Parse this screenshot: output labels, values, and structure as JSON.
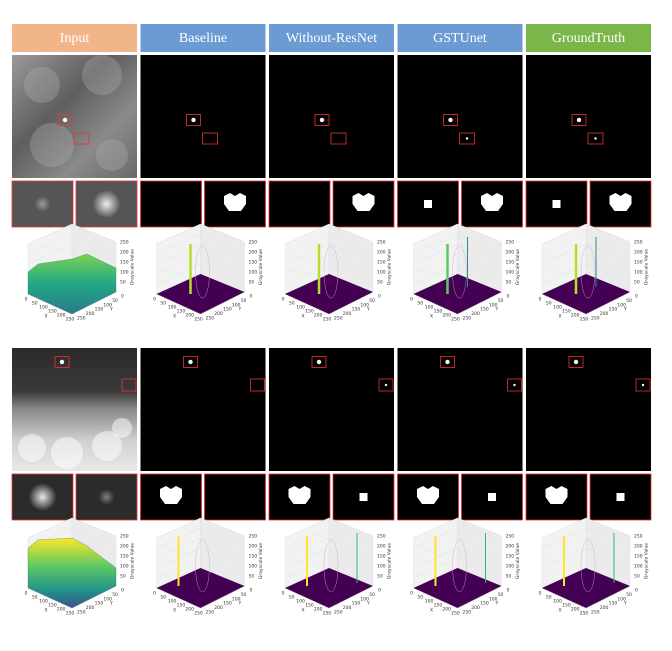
{
  "columns": [
    {
      "label": "Input",
      "color": "#f2b58a"
    },
    {
      "label": "Baseline",
      "color": "#6b9bd2"
    },
    {
      "label": "Without-ResNet",
      "color": "#6b9bd2"
    },
    {
      "label": "GSTUnet",
      "color": "#6b9bd2"
    },
    {
      "label": "GroundTruth",
      "color": "#7ab648"
    }
  ],
  "plot_axes": {
    "x_label": "X",
    "y_label": "Y",
    "z_label": "Grayscale Value",
    "x_ticks": [
      0,
      50,
      100,
      150,
      200,
      250
    ],
    "y_ticks": [
      0,
      50,
      100,
      150,
      200,
      250
    ],
    "z_ticks": [
      50,
      100,
      150,
      200,
      250
    ]
  }
}
